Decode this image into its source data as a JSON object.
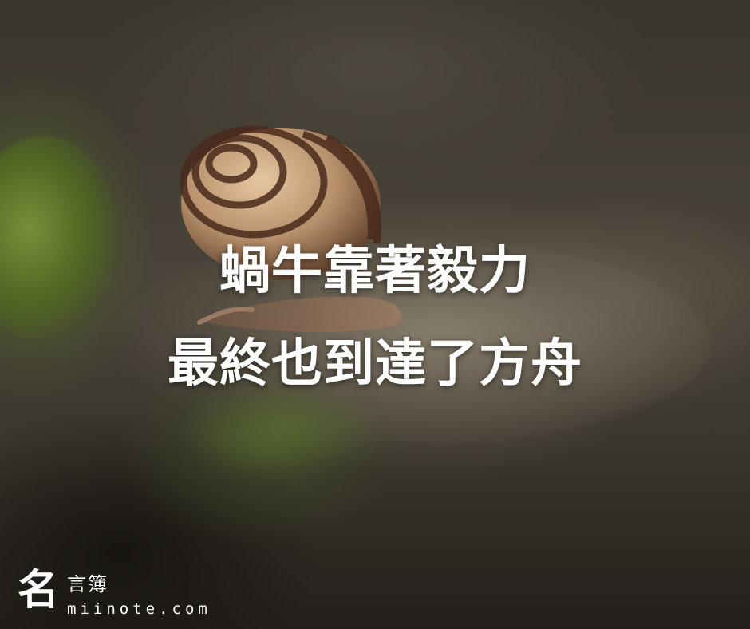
{
  "quote": {
    "line1": "蝸牛靠著毅力",
    "line2": "最終也到達了方舟"
  },
  "brand": {
    "mark": "名",
    "name": "言簿",
    "url": "miinote.com"
  },
  "colors": {
    "text": "#ffffff",
    "moss": "#6a8030",
    "shell": "#b58f6a",
    "shell_stripe": "#4a2a1c"
  }
}
